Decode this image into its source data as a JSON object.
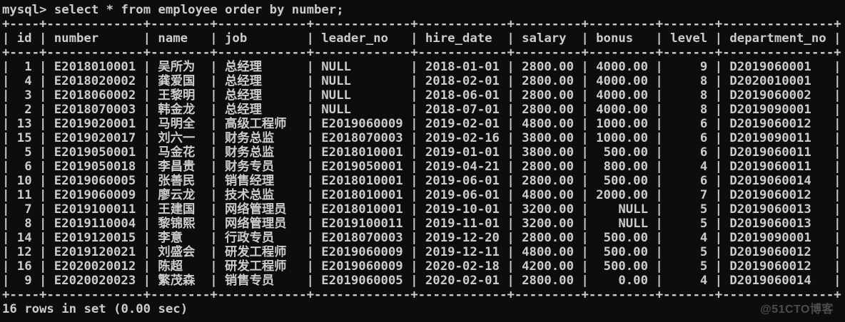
{
  "colors": {
    "background": "#0d0d0d",
    "foreground": "#cccccc",
    "watermark_color": "#4d4d4d"
  },
  "terminal": {
    "prompt": "mysql>",
    "command": "select * from employee order by number;",
    "footer": "16 rows in set (0.00 sec)",
    "watermark": "@51CTO博客"
  },
  "table": {
    "columns": [
      {
        "label": "id",
        "width": 4,
        "align": "right"
      },
      {
        "label": "number",
        "width": 13,
        "align": "left"
      },
      {
        "label": "name",
        "width": 8,
        "align": "left"
      },
      {
        "label": "job",
        "width": 12,
        "align": "left"
      },
      {
        "label": "leader_no",
        "width": 13,
        "align": "left"
      },
      {
        "label": "hire_date",
        "width": 12,
        "align": "left"
      },
      {
        "label": "salary",
        "width": 9,
        "align": "right"
      },
      {
        "label": "bonus",
        "width": 9,
        "align": "right"
      },
      {
        "label": "level",
        "width": 7,
        "align": "right"
      },
      {
        "label": "department_no",
        "width": 15,
        "align": "left"
      }
    ],
    "rows": [
      [
        "1",
        "E2018010001",
        "吴所为",
        "总经理",
        "NULL",
        "2018-01-01",
        "2800.00",
        "4000.00",
        "9",
        "D2019060001"
      ],
      [
        "4",
        "E2018020002",
        "龚爱国",
        "总经理",
        "NULL",
        "2018-02-01",
        "2800.00",
        "4000.00",
        "8",
        "D2020010001"
      ],
      [
        "3",
        "E2018060002",
        "王黎明",
        "总经理",
        "NULL",
        "2018-06-01",
        "2800.00",
        "4000.00",
        "8",
        "D2019060002"
      ],
      [
        "2",
        "E2018070003",
        "韩金龙",
        "总经理",
        "NULL",
        "2018-07-01",
        "2800.00",
        "4000.00",
        "8",
        "D2019090001"
      ],
      [
        "13",
        "E2019020001",
        "马明全",
        "高级工程师",
        "E2019060009",
        "2019-02-01",
        "4800.00",
        "1000.00",
        "6",
        "D2019060012"
      ],
      [
        "15",
        "E2019020017",
        "刘六一",
        "财务总监",
        "E2018070003",
        "2019-02-16",
        "3800.00",
        "1000.00",
        "6",
        "D2019090011"
      ],
      [
        "5",
        "E2019050001",
        "马金花",
        "财务总监",
        "E2018010001",
        "2019-01-01",
        "3800.00",
        "500.00",
        "6",
        "D2019060011"
      ],
      [
        "6",
        "E2019050018",
        "李昌贵",
        "财务专员",
        "E2019050001",
        "2019-04-21",
        "2800.00",
        "800.00",
        "4",
        "D2019060011"
      ],
      [
        "10",
        "E2019060005",
        "张善民",
        "销售经理",
        "E2018010001",
        "2019-06-01",
        "2800.00",
        "500.00",
        "6",
        "D2019060014"
      ],
      [
        "11",
        "E2019060009",
        "廖云龙",
        "技术总监",
        "E2018010001",
        "2019-06-01",
        "4800.00",
        "2000.00",
        "7",
        "D2019060012"
      ],
      [
        "7",
        "E2019100011",
        "王建国",
        "网络管理员",
        "E2018010001",
        "2019-10-01",
        "3200.00",
        "NULL",
        "5",
        "D2019060013"
      ],
      [
        "8",
        "E2019110004",
        "黎锦熙",
        "网络管理员",
        "E2019100011",
        "2019-11-01",
        "3200.00",
        "NULL",
        "5",
        "D2019060013"
      ],
      [
        "14",
        "E2019120015",
        "李意",
        "行政专员",
        "E2018070003",
        "2019-12-20",
        "2800.00",
        "500.00",
        "4",
        "D2019090001"
      ],
      [
        "12",
        "E2019120021",
        "刘盛会",
        "研发工程师",
        "E2019060009",
        "2019-12-11",
        "4800.00",
        "500.00",
        "5",
        "D2019060012"
      ],
      [
        "16",
        "E2020020012",
        "陈超",
        "研发工程师",
        "E2019060009",
        "2020-02-18",
        "4200.00",
        "500.00",
        "5",
        "D2019060012"
      ],
      [
        "9",
        "E2020020023",
        "繁茂森",
        "销售专员",
        "E2019060005",
        "2020-02-01",
        "2800.00",
        "0.00",
        "4",
        "D2019060014"
      ]
    ]
  }
}
